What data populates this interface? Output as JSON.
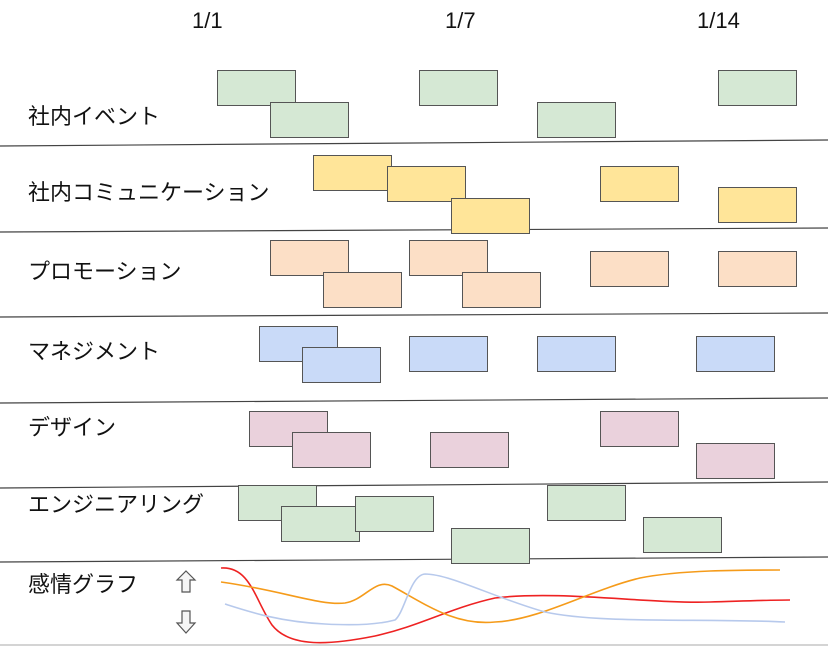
{
  "dates": [
    "1/1",
    "1/7",
    "1/14"
  ],
  "rows": [
    {
      "label": "社内イベント",
      "color": "#d5e8d4"
    },
    {
      "label": "社内コミュニケーション",
      "color": "#ffe599"
    },
    {
      "label": "プロモーション",
      "color": "#fcdfc6"
    },
    {
      "label": "マネジメント",
      "color": "#c9daf8"
    },
    {
      "label": "デザイン",
      "color": "#ead1dc"
    },
    {
      "label": "エンジニアリング",
      "color": "#d5e8d4"
    }
  ],
  "emotion": {
    "label": "感情グラフ",
    "up_icon": "up-arrow-icon",
    "down_icon": "down-arrow-icon",
    "line_colors": [
      "#ee2222",
      "#f59b1a",
      "#b7c9ec"
    ]
  }
}
